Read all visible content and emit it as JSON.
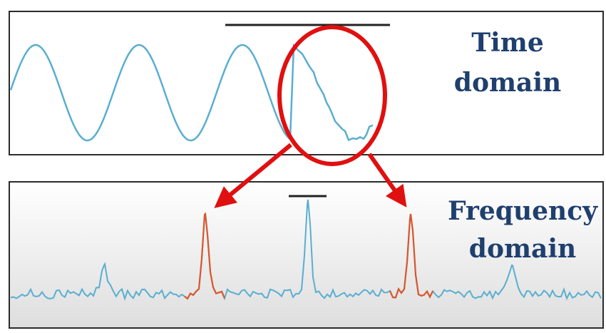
{
  "labels": {
    "time_line1": "Time",
    "time_line2": "domain",
    "freq_line1": "Frequency",
    "freq_line2": "domain"
  },
  "colors": {
    "signal": "#5aaed0",
    "highlight": "#d9572d",
    "annotation": "#e01010",
    "label": "#1f3f6e",
    "frame": "#2b2b2b"
  }
}
